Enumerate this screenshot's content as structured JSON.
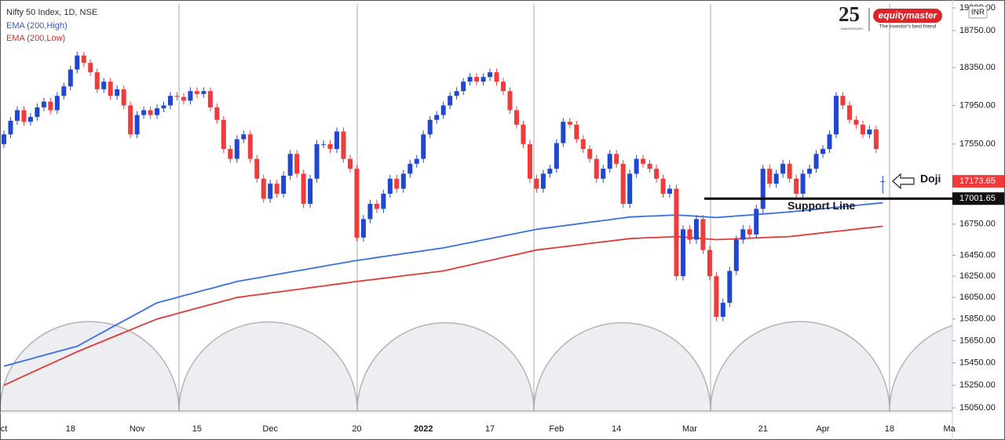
{
  "chart_data": {
    "type": "candlestick",
    "title": "Nifty 50 Index, 1D, NSE",
    "currency": "INR",
    "log_scale": true,
    "grid": false,
    "up_color": "#2047d0",
    "down_color": "#ef3b3b",
    "categories": [
      "ct",
      null,
      null,
      null,
      null,
      null,
      null,
      null,
      null,
      null,
      "18",
      null,
      null,
      null,
      null,
      null,
      null,
      null,
      null,
      null,
      "Nov",
      null,
      null,
      null,
      null,
      null,
      null,
      null,
      null,
      "15",
      null,
      null,
      null,
      null,
      null,
      null,
      null,
      null,
      null,
      null,
      "Dec",
      null,
      null,
      null,
      null,
      null,
      null,
      null,
      null,
      null,
      null,
      null,
      null,
      "20",
      null,
      null,
      null,
      null,
      null,
      null,
      null,
      null,
      null,
      "2022",
      null,
      null,
      null,
      null,
      null,
      null,
      null,
      null,
      null,
      "17",
      null,
      null,
      null,
      null,
      null,
      null,
      null,
      null,
      null,
      "Feb",
      null,
      null,
      null,
      null,
      null,
      null,
      null,
      null,
      "14",
      null,
      null,
      null,
      null,
      null,
      null,
      null,
      null,
      null,
      null,
      "Mar",
      null,
      null,
      null,
      null,
      null,
      null,
      null,
      null,
      null,
      null,
      "21",
      null,
      null,
      null,
      null,
      null,
      null,
      null,
      null,
      "Apr",
      null,
      null,
      null,
      null,
      null,
      null,
      null,
      null,
      null,
      "18",
      null,
      null,
      null,
      null,
      null,
      null,
      null,
      null,
      "Ma"
    ],
    "open": [
      17550,
      17650,
      17790,
      17900,
      17780,
      17830,
      17930,
      17990,
      17900,
      18050,
      18150,
      18330,
      18480,
      18400,
      18300,
      18120,
      18200,
      18050,
      18120,
      17950,
      17650,
      17850,
      17900,
      17850,
      17920,
      17950,
      18050,
      18040,
      18000,
      18100,
      18070,
      18100,
      17930,
      17800,
      17500,
      17400,
      17600,
      17650,
      17400,
      17200,
      17000,
      17150,
      17050,
      17230,
      17450,
      17250,
      16950,
      17200,
      17550,
      17550,
      17500,
      17680,
      17400,
      17300,
      16620,
      16800,
      16950,
      16900,
      17050,
      17200,
      17100,
      17250,
      17350,
      17400,
      17650,
      17800,
      17850,
      17950,
      18050,
      18100,
      18200,
      18250,
      18200,
      18250,
      18300,
      18200,
      18100,
      17900,
      17750,
      17550,
      17200,
      17100,
      17250,
      17300,
      17560,
      17780,
      17750,
      17600,
      17500,
      17400,
      17200,
      17300,
      17450,
      17350,
      16950,
      17250,
      17400,
      17350,
      17300,
      17200,
      17050,
      17100,
      16250,
      16700,
      16600,
      16800,
      16500,
      16250,
      15870,
      16000,
      16300,
      16600,
      16700,
      16650,
      16900,
      17300,
      17150,
      17250,
      17350,
      17200,
      17050,
      17250,
      17300,
      17450,
      17500,
      17650,
      18050,
      17950,
      17800,
      17750,
      17650,
      17700,
      17170,
      null,
      null,
      null,
      null,
      null,
      null,
      null,
      null,
      null,
      null
    ],
    "high": [
      17690,
      17830,
      17940,
      17940,
      17870,
      17970,
      18030,
      18030,
      18090,
      18190,
      18370,
      18520,
      18520,
      18440,
      18340,
      18240,
      18240,
      18160,
      18160,
      17990,
      17890,
      17940,
      17940,
      17960,
      17990,
      18090,
      18090,
      18080,
      18140,
      18140,
      18140,
      18140,
      17970,
      17840,
      17540,
      17640,
      17690,
      17690,
      17440,
      17240,
      17190,
      17190,
      17270,
      17490,
      17490,
      17290,
      17240,
      17590,
      17590,
      17590,
      17720,
      17720,
      17440,
      17340,
      16840,
      16990,
      16990,
      17090,
      17240,
      17240,
      17290,
      17390,
      17440,
      17690,
      17840,
      17890,
      17990,
      18090,
      18140,
      18240,
      18290,
      18290,
      18290,
      18340,
      18340,
      18240,
      18140,
      17940,
      17790,
      17590,
      17240,
      17290,
      17340,
      17600,
      17820,
      17820,
      17790,
      17640,
      17540,
      17440,
      17340,
      17490,
      17490,
      17390,
      17290,
      17440,
      17440,
      17390,
      17340,
      17240,
      17140,
      17140,
      16740,
      16740,
      16840,
      16840,
      16540,
      16290,
      16040,
      16340,
      16640,
      16740,
      16740,
      16940,
      17340,
      17340,
      17290,
      17390,
      17390,
      17240,
      17290,
      17340,
      17490,
      17540,
      17690,
      18090,
      18090,
      17990,
      17840,
      17790,
      17740,
      17740,
      17230,
      null,
      null,
      null,
      null,
      null,
      null,
      null,
      null,
      null,
      null
    ],
    "low": [
      17510,
      17610,
      17750,
      17740,
      17740,
      17790,
      17890,
      17860,
      17860,
      18010,
      18110,
      18290,
      18360,
      18260,
      18080,
      18080,
      18010,
      18010,
      17910,
      17610,
      17610,
      17810,
      17810,
      17810,
      17880,
      17910,
      18000,
      17960,
      17960,
      18030,
      18030,
      17890,
      17760,
      17460,
      17360,
      17360,
      17560,
      17360,
      17160,
      16960,
      16960,
      17010,
      17010,
      17190,
      17210,
      16910,
      16910,
      17160,
      17510,
      17460,
      17460,
      17360,
      17260,
      16580,
      16580,
      16760,
      16860,
      16860,
      17010,
      17060,
      17060,
      17210,
      17310,
      17360,
      17610,
      17760,
      17810,
      17910,
      18010,
      18060,
      18160,
      18160,
      18160,
      18210,
      18160,
      18060,
      17860,
      17710,
      17510,
      17160,
      17060,
      17060,
      17210,
      17260,
      17520,
      17710,
      17560,
      17460,
      17360,
      17160,
      17160,
      17260,
      17310,
      16910,
      16910,
      17210,
      17310,
      17260,
      17160,
      17010,
      17010,
      16210,
      16210,
      16560,
      16560,
      16460,
      16210,
      15830,
      15830,
      15960,
      16260,
      16560,
      16610,
      16610,
      16860,
      17110,
      17110,
      17210,
      17160,
      17010,
      17010,
      17210,
      17260,
      17410,
      17460,
      17610,
      17910,
      17760,
      17710,
      17610,
      17610,
      17460,
      17050,
      null,
      null,
      null,
      null,
      null,
      null,
      null,
      null,
      null,
      null
    ],
    "close": [
      17650,
      17790,
      17900,
      17780,
      17830,
      17930,
      17990,
      17900,
      18050,
      18150,
      18330,
      18480,
      18400,
      18300,
      18120,
      18200,
      18050,
      18120,
      17950,
      17650,
      17850,
      17900,
      17850,
      17920,
      17950,
      18050,
      18040,
      18000,
      18100,
      18070,
      18100,
      17930,
      17800,
      17500,
      17400,
      17600,
      17650,
      17400,
      17200,
      17000,
      17150,
      17050,
      17230,
      17450,
      17250,
      16950,
      17200,
      17550,
      17550,
      17500,
      17680,
      17400,
      17300,
      16620,
      16800,
      16950,
      16900,
      17050,
      17200,
      17100,
      17250,
      17350,
      17400,
      17650,
      17800,
      17850,
      17950,
      18050,
      18100,
      18200,
      18250,
      18200,
      18250,
      18300,
      18200,
      18100,
      17900,
      17750,
      17550,
      17200,
      17100,
      17250,
      17300,
      17560,
      17780,
      17750,
      17600,
      17500,
      17400,
      17200,
      17300,
      17450,
      17350,
      16950,
      17250,
      17400,
      17350,
      17300,
      17200,
      17050,
      17100,
      16250,
      16700,
      16600,
      16800,
      16500,
      16250,
      15870,
      16000,
      16300,
      16600,
      16700,
      16650,
      16900,
      17300,
      17150,
      17250,
      17350,
      17200,
      17050,
      17250,
      17300,
      17450,
      17500,
      17650,
      18050,
      17950,
      17800,
      17750,
      17650,
      17700,
      17500,
      17173.65,
      null,
      null,
      null,
      null,
      null,
      null,
      null,
      null,
      null,
      null
    ],
    "series": [
      {
        "name": "EMA (200,High)",
        "color": "#3a6fe0",
        "values": [
          15420,
          15436,
          15453,
          15469,
          15485,
          15502,
          15518,
          15535,
          15551,
          15567,
          15584,
          15600,
          15633,
          15667,
          15700,
          15733,
          15767,
          15800,
          15833,
          15867,
          15900,
          15933,
          15967,
          16000,
          16017,
          16033,
          16050,
          16067,
          16083,
          16100,
          16117,
          16133,
          16150,
          16167,
          16183,
          16200,
          16211,
          16222,
          16233,
          16244,
          16256,
          16267,
          16278,
          16289,
          16300,
          16311,
          16322,
          16333,
          16344,
          16356,
          16367,
          16378,
          16389,
          16400,
          16409,
          16418,
          16428,
          16437,
          16446,
          16455,
          16465,
          16474,
          16483,
          16492,
          16502,
          16511,
          16520,
          16533,
          16546,
          16559,
          16571,
          16584,
          16597,
          16610,
          16623,
          16636,
          16649,
          16661,
          16674,
          16687,
          16700,
          16709,
          16717,
          16726,
          16734,
          16743,
          16751,
          16760,
          16769,
          16777,
          16786,
          16794,
          16803,
          16811,
          16820,
          16823,
          16826,
          16829,
          16831,
          16834,
          16837,
          16840,
          16836,
          16832,
          16828,
          16823,
          16819,
          16815,
          16820,
          16825,
          16830,
          16835,
          16840,
          16845,
          16850,
          16855,
          16860,
          16865,
          16870,
          16876,
          16883,
          16889,
          16896,
          16902,
          16909,
          16915,
          16921,
          16928,
          16934,
          16941,
          16947,
          16954,
          16960,
          null,
          null,
          null,
          null,
          null,
          null,
          null,
          null,
          null,
          null
        ]
      },
      {
        "name": "EMA (200,Low)",
        "color": "#e03a3a",
        "values": [
          15250,
          15277,
          15305,
          15332,
          15359,
          15386,
          15414,
          15441,
          15468,
          15495,
          15523,
          15550,
          15575,
          15600,
          15625,
          15650,
          15675,
          15700,
          15725,
          15750,
          15775,
          15800,
          15825,
          15850,
          15867,
          15883,
          15900,
          15917,
          15933,
          15950,
          15967,
          15983,
          16000,
          16017,
          16033,
          16050,
          16058,
          16067,
          16075,
          16083,
          16092,
          16100,
          16108,
          16117,
          16125,
          16133,
          16142,
          16150,
          16158,
          16167,
          16175,
          16183,
          16192,
          16200,
          16208,
          16215,
          16223,
          16231,
          16238,
          16246,
          16254,
          16262,
          16269,
          16277,
          16285,
          16292,
          16300,
          16314,
          16329,
          16343,
          16357,
          16371,
          16386,
          16400,
          16414,
          16429,
          16443,
          16457,
          16471,
          16486,
          16500,
          16508,
          16516,
          16524,
          16531,
          16539,
          16547,
          16555,
          16563,
          16571,
          16579,
          16586,
          16594,
          16602,
          16610,
          16613,
          16616,
          16619,
          16621,
          16624,
          16627,
          16630,
          16625,
          16620,
          16615,
          16610,
          16605,
          16600,
          16603,
          16605,
          16608,
          16611,
          16614,
          16616,
          16619,
          16622,
          16625,
          16627,
          16630,
          16637,
          16644,
          16651,
          16659,
          16666,
          16673,
          16680,
          16687,
          16694,
          16701,
          16709,
          16716,
          16723,
          16730,
          null,
          null,
          null,
          null,
          null,
          null,
          null,
          null,
          null,
          null
        ]
      }
    ],
    "ylim": [
      15016,
      19087
    ],
    "yticks": [
      {
        "value": 19000,
        "label": "19000.00"
      },
      {
        "value": 18750,
        "label": "18750.00"
      },
      {
        "value": 18350,
        "label": "18350.00"
      },
      {
        "value": 17950,
        "label": "17950.00"
      },
      {
        "value": 17550,
        "label": "17550.00"
      },
      {
        "value": 16750,
        "label": "16750.00"
      },
      {
        "value": 16450,
        "label": "16450.00"
      },
      {
        "value": 16250,
        "label": "16250.00"
      },
      {
        "value": 16050,
        "label": "16050.00"
      },
      {
        "value": 15850,
        "label": "15850.00"
      },
      {
        "value": 15650,
        "label": "15650.00"
      },
      {
        "value": 15450,
        "label": "15450.00"
      },
      {
        "value": 15250,
        "label": "15250.00"
      },
      {
        "value": 15050,
        "label": "15050.00"
      }
    ],
    "support": {
      "label": "Support Line",
      "value": 17001.65
    },
    "annotation": "Doji",
    "logo": {
      "number": "25",
      "tag": "ANNIVERSARY",
      "brand": "equitymaster",
      "slogan": "The investor's best friend"
    }
  }
}
